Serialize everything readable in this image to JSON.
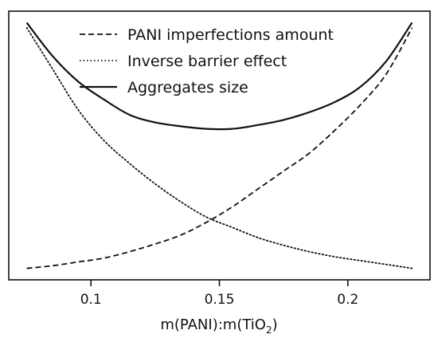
{
  "chart_data": {
    "type": "line",
    "title": "",
    "xlabel": "m(PANI):m(TiO",
    "xlabel_subscript": "2",
    "xlabel_suffix": ")",
    "ylabel": "",
    "xlim": [
      0.068,
      0.232
    ],
    "ylim": [
      0,
      1
    ],
    "x_ticks": [
      0.1,
      0.15,
      0.2
    ],
    "x_tick_labels": [
      "0.1",
      "0.15",
      "0.2"
    ],
    "y_ticks_visible": false,
    "grid": false,
    "legend_position": "top-center",
    "series": [
      {
        "name": "PANI imperfections amount",
        "style": "dashed",
        "x": [
          0.075,
          0.085,
          0.095,
          0.105,
          0.115,
          0.125,
          0.135,
          0.145,
          0.155,
          0.165,
          0.175,
          0.185,
          0.195,
          0.205,
          0.215,
          0.225
        ],
        "y": [
          0.02,
          0.03,
          0.045,
          0.06,
          0.085,
          0.115,
          0.15,
          0.2,
          0.26,
          0.33,
          0.4,
          0.47,
          0.56,
          0.66,
          0.78,
          0.96
        ]
      },
      {
        "name": "Inverse barrier effect",
        "style": "dotted",
        "x": [
          0.075,
          0.085,
          0.095,
          0.105,
          0.115,
          0.125,
          0.135,
          0.145,
          0.155,
          0.165,
          0.175,
          0.185,
          0.195,
          0.205,
          0.215,
          0.225
        ],
        "y": [
          0.96,
          0.8,
          0.64,
          0.52,
          0.43,
          0.35,
          0.28,
          0.22,
          0.18,
          0.14,
          0.11,
          0.085,
          0.065,
          0.05,
          0.035,
          0.02
        ]
      },
      {
        "name": "Aggregates size",
        "style": "solid",
        "x": [
          0.075,
          0.085,
          0.095,
          0.105,
          0.115,
          0.125,
          0.135,
          0.145,
          0.155,
          0.165,
          0.175,
          0.185,
          0.195,
          0.205,
          0.215,
          0.225
        ],
        "y": [
          0.98,
          0.85,
          0.75,
          0.68,
          0.62,
          0.59,
          0.575,
          0.565,
          0.565,
          0.58,
          0.6,
          0.63,
          0.67,
          0.73,
          0.83,
          0.98
        ]
      }
    ]
  }
}
